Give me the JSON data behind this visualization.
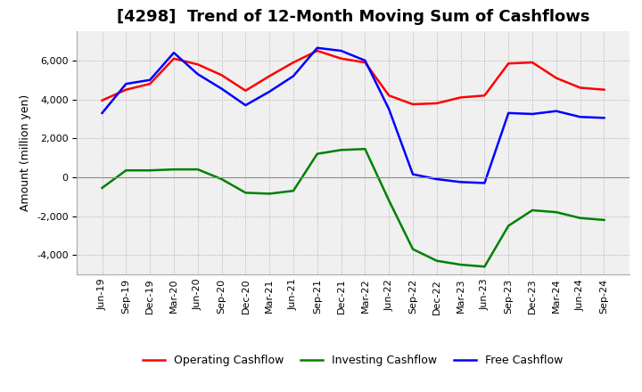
{
  "title": "[4298]  Trend of 12-Month Moving Sum of Cashflows",
  "ylabel": "Amount (million yen)",
  "xlabels": [
    "Jun-19",
    "Sep-19",
    "Dec-19",
    "Mar-20",
    "Jun-20",
    "Sep-20",
    "Dec-20",
    "Mar-21",
    "Jun-21",
    "Sep-21",
    "Dec-21",
    "Mar-22",
    "Jun-22",
    "Sep-22",
    "Dec-22",
    "Mar-23",
    "Jun-23",
    "Sep-23",
    "Dec-23",
    "Mar-24",
    "Jun-24",
    "Sep-24"
  ],
  "operating_cashflow": [
    3950,
    4500,
    4800,
    6100,
    5800,
    5250,
    4450,
    5200,
    5900,
    6500,
    6100,
    5900,
    4200,
    3750,
    3800,
    4100,
    4200,
    5850,
    5900,
    5100,
    4600,
    4500
  ],
  "investing_cashflow": [
    -550,
    350,
    350,
    400,
    400,
    -100,
    -800,
    -850,
    -700,
    1200,
    1400,
    1450,
    -1200,
    -3700,
    -4300,
    -4500,
    -4600,
    -2500,
    -1700,
    -1800,
    -2100,
    -2200
  ],
  "free_cashflow": [
    3300,
    4800,
    5000,
    6400,
    5300,
    4550,
    3700,
    4400,
    5200,
    6650,
    6500,
    6000,
    3500,
    150,
    -100,
    -250,
    -300,
    3300,
    3250,
    3400,
    3100,
    3050
  ],
  "ylim": [
    -5000,
    7500
  ],
  "yticks": [
    -4000,
    -2000,
    0,
    2000,
    4000,
    6000
  ],
  "operating_color": "#FF0000",
  "investing_color": "#008000",
  "free_color": "#0000FF",
  "background_color": "#FFFFFF",
  "plot_bg_color": "#F0F0F0",
  "grid_color": "#AAAAAA",
  "title_fontsize": 13,
  "axis_fontsize": 9,
  "tick_fontsize": 8,
  "legend_fontsize": 9,
  "linewidth": 1.8
}
